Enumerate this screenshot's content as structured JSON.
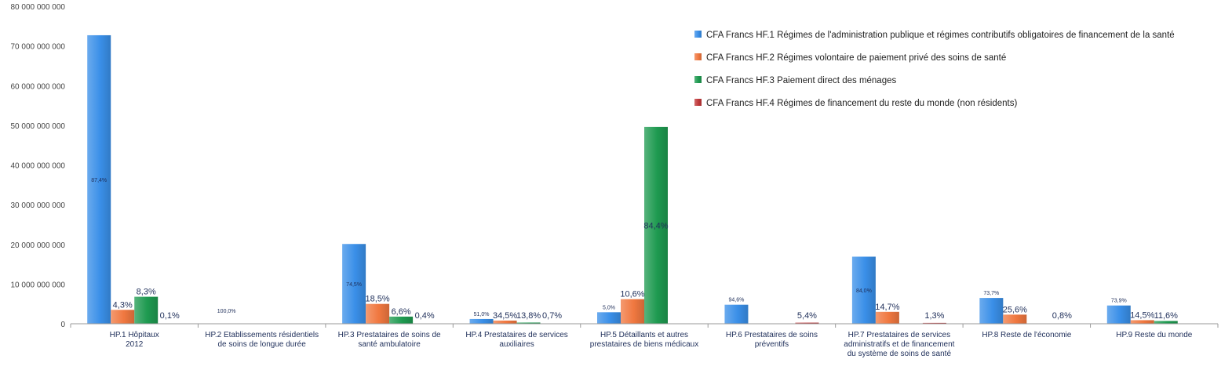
{
  "chart_data": {
    "type": "bar",
    "title": "",
    "xlabel": "",
    "ylabel": "",
    "ylim": [
      0,
      80000000000
    ],
    "y_ticks": [
      "0",
      "10 000 000 000",
      "20 000 000 000",
      "30 000 000 000",
      "40 000 000 000",
      "50 000 000 000",
      "60 000 000 000",
      "70 000 000 000",
      "80 000 000 000"
    ],
    "grid": false,
    "legend_position": "top-right",
    "categories": [
      [
        "HP.1 Hôpitaux",
        "2012"
      ],
      [
        "HP.2 Etablissements résidentiels",
        "de soins de longue durée"
      ],
      [
        "HP.3 Prestataires de soins de",
        "santé ambulatoire"
      ],
      [
        "HP.4 Prestataires de services",
        "auxiliaires"
      ],
      [
        "HP.5 Détaillants et autres",
        "prestataires de biens médicaux"
      ],
      [
        "HP.6 Prestataires de soins",
        "préventifs"
      ],
      [
        "HP.7 Prestataires de services",
        "administratifs et de financement",
        "du système de soins de santé"
      ],
      [
        "HP.8 Reste de l'économie"
      ],
      [
        "HP.9 Reste du monde"
      ]
    ],
    "series": [
      {
        "name": "CFA Francs HF.1 Régimes de l'administration publique et régimes contributifs obligatoires de financement de la santé",
        "color": "#3a8fe8",
        "values": [
          72700000000,
          50000000,
          20100000000,
          1200000000,
          2900000000,
          4800000000,
          16900000000,
          6500000000,
          4600000000
        ],
        "labels": [
          "87,4%",
          "100,0%",
          "74,5%",
          "51,0%",
          "5,0%",
          "94,6%",
          "84,0%",
          "73,7%",
          "73,9%"
        ]
      },
      {
        "name": "CFA Francs HF.2 Régimes volontaire de paiement privé des soins de santé",
        "color": "#f07840",
        "values": [
          3500000000,
          0,
          5000000000,
          800000000,
          6200000000,
          0,
          3000000000,
          2300000000,
          900000000
        ],
        "labels": [
          "4,3%",
          "",
          "18,5%",
          "34,5%",
          "10,6%",
          "",
          "14,7%",
          "25,6%",
          "14,5%"
        ]
      },
      {
        "name": "CFA Francs HF.3 Paiement direct des ménages",
        "color": "#1e9a50",
        "values": [
          6800000000,
          0,
          1800000000,
          300000000,
          49600000000,
          0,
          0,
          0,
          700000000
        ],
        "labels": [
          "8,3%",
          "",
          "6,6%",
          "13,8%",
          "84,4%",
          "",
          "",
          "",
          "11,6%"
        ]
      },
      {
        "name": "CFA Francs HF.4 Régimes de financement du reste du monde (non résidents)",
        "color": "#c0393b",
        "values": [
          80000000,
          0,
          100000000,
          15000000,
          0,
          280000000,
          220000000,
          70000000,
          0
        ],
        "labels": [
          "0,1%",
          "",
          "0,4%",
          "0,7%",
          "",
          "5,4%",
          "1,3%",
          "0,8%",
          ""
        ]
      }
    ]
  }
}
